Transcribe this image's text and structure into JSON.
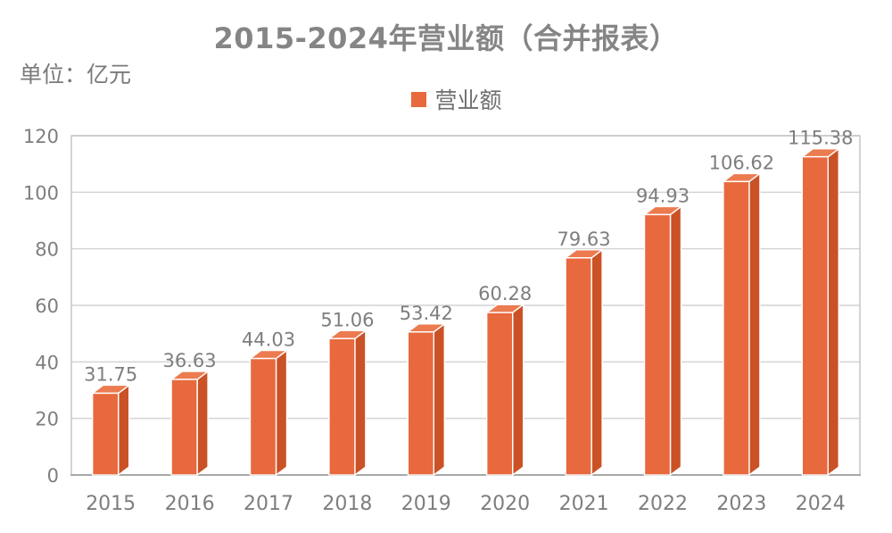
{
  "header": {
    "title": "2015-2024年营业额（合并报表）",
    "unit_label": "单位：亿元"
  },
  "legend": {
    "label": "营业额",
    "swatch_color": "#e8693e"
  },
  "chart_data": {
    "type": "bar",
    "style": "3d-column",
    "title": "2015-2024年营业额（合并报表）",
    "unit": "亿元",
    "categories": [
      "2015",
      "2016",
      "2017",
      "2018",
      "2019",
      "2020",
      "2021",
      "2022",
      "2023",
      "2024"
    ],
    "series": [
      {
        "name": "营业额",
        "color": "#e8693e",
        "values": [
          31.75,
          36.63,
          44.03,
          51.06,
          53.42,
          60.28,
          79.63,
          94.93,
          106.62,
          115.38
        ]
      }
    ],
    "data_labels": [
      "31.75",
      "36.63",
      "44.03",
      "51.06",
      "53.42",
      "60.28",
      "79.63",
      "94.93",
      "106.62",
      "115.38"
    ],
    "xlabel": "",
    "ylabel": "单位：亿元",
    "ylim": [
      0,
      120
    ],
    "yticks": [
      0,
      20,
      40,
      60,
      80,
      100,
      120
    ],
    "grid": true,
    "legend_position": "top-center"
  },
  "colors": {
    "bar_front": "#e8693e",
    "bar_side": "#ca5226",
    "bar_top": "#ec7b50",
    "face_separator": "#ffffff",
    "grid_line": "#d4d4d4",
    "plot_border": "#c6c6c6",
    "axis_line": "#a8a8a8",
    "title_text": "#858585",
    "label_text": "#7e7e7e"
  }
}
